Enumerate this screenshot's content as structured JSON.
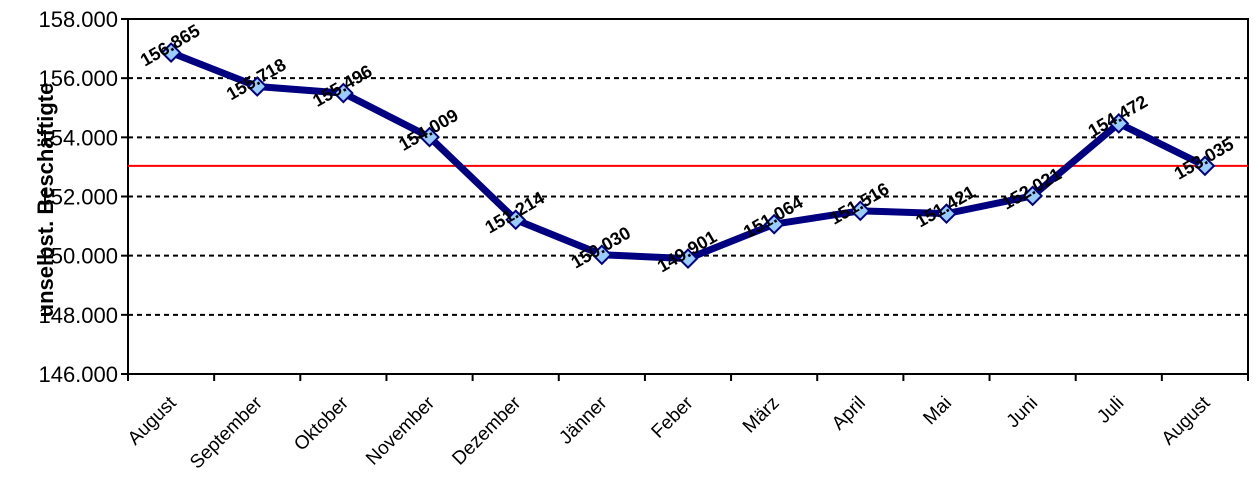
{
  "chart_data": {
    "type": "line",
    "ylabel": "unselbst. Beschäftigte",
    "xlabel": "",
    "title": "",
    "ylim": [
      146000,
      158000
    ],
    "yticks": [
      146000,
      148000,
      150000,
      152000,
      154000,
      156000,
      158000
    ],
    "ytick_labels": [
      "146.000",
      "148.000",
      "150.000",
      "152.000",
      "154.000",
      "156.000",
      "158.000"
    ],
    "grid": "horizontal dashed",
    "categories": [
      "August",
      "September",
      "Oktober",
      "November",
      "Dezember",
      "Jänner",
      "Feber",
      "März",
      "April",
      "Mai",
      "Juni",
      "Juli",
      "August"
    ],
    "series": [
      {
        "values": [
          156865,
          155718,
          155496,
          154009,
          151214,
          150030,
          149901,
          151064,
          151516,
          151421,
          152021,
          154472,
          153035
        ],
        "labels": [
          "156.865",
          "155.718",
          "155.496",
          "154.009",
          "151.214",
          "150.030",
          "149.901",
          "151.064",
          "151.516",
          "151.421",
          "152.021",
          "154.472",
          "153.035"
        ],
        "color": "#000080",
        "marker_color": "#99CCFF"
      }
    ],
    "reference_line": {
      "value": 153035,
      "color": "#FF0000"
    }
  }
}
